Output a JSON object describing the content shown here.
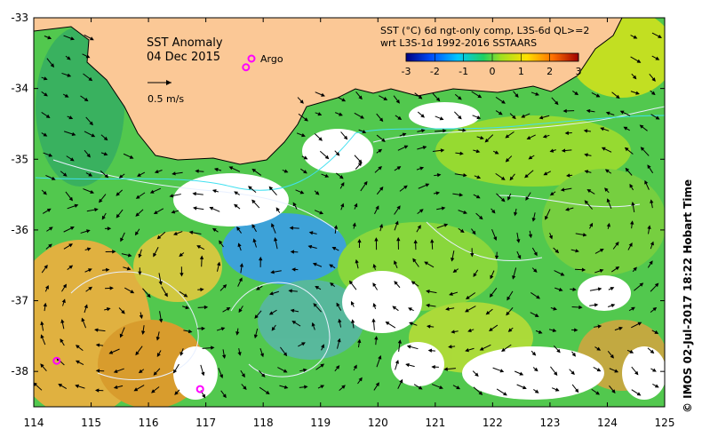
{
  "map": {
    "title": "SST Anomaly",
    "date": "04 Dec 2015",
    "argo_label": "Argo",
    "vector_scale_label": "0.5 m/s",
    "colorbar_title_line1": "SST (°C) 6d ngt-only comp, L3S-6d QL>=2",
    "colorbar_title_line2": "wrt L3S-1d 1992-2016 SSTAARS",
    "colorbar_ticks": [
      "-3",
      "-2",
      "-1",
      "0",
      "1",
      "2",
      "3"
    ],
    "credit": "© IMOS 02-Jul-2017 18:22 Hobart Time",
    "x_ticks": [
      "114",
      "115",
      "116",
      "117",
      "118",
      "119",
      "120",
      "121",
      "122",
      "123",
      "124",
      "125"
    ],
    "y_ticks": [
      "-33",
      "-34",
      "-35",
      "-36",
      "-37",
      "-38"
    ],
    "lon_range": [
      114,
      125
    ],
    "lat_range": [
      -38.5,
      -33
    ],
    "colors": {
      "land": "#fbc896",
      "ocean_base": "#50c850",
      "cold": "#1e82d2",
      "warm": "#e6a032",
      "contour": "#e8f0ff",
      "argo": "#ff00ff"
    },
    "argo_floats": [
      {
        "lon": 117.7,
        "lat": -33.7
      },
      {
        "lon": 114.4,
        "lat": -37.85
      },
      {
        "lon": 116.9,
        "lat": -38.25
      }
    ]
  }
}
